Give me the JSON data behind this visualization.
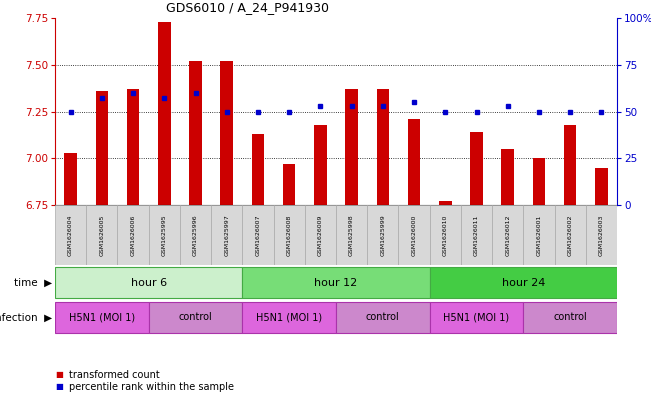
{
  "title": "GDS6010 / A_24_P941930",
  "samples": [
    "GSM1626004",
    "GSM1626005",
    "GSM1626006",
    "GSM1625995",
    "GSM1625996",
    "GSM1625997",
    "GSM1626007",
    "GSM1626008",
    "GSM1626009",
    "GSM1625998",
    "GSM1625999",
    "GSM1626000",
    "GSM1626010",
    "GSM1626011",
    "GSM1626012",
    "GSM1626001",
    "GSM1626002",
    "GSM1626003"
  ],
  "bar_values": [
    7.03,
    7.36,
    7.37,
    7.73,
    7.52,
    7.52,
    7.13,
    6.97,
    7.18,
    7.37,
    7.37,
    7.21,
    6.77,
    7.14,
    7.05,
    7.0,
    7.18,
    6.95
  ],
  "blue_values": [
    50,
    57,
    60,
    57,
    60,
    50,
    50,
    50,
    53,
    53,
    53,
    55,
    50,
    50,
    53,
    50,
    50,
    50
  ],
  "ylim_left": [
    6.75,
    7.75
  ],
  "ylim_right": [
    0,
    100
  ],
  "yticks_left": [
    6.75,
    7.0,
    7.25,
    7.5,
    7.75
  ],
  "yticks_right": [
    0,
    25,
    50,
    75,
    100
  ],
  "bar_color": "#cc0000",
  "blue_color": "#0000cc",
  "grid_yticks": [
    7.0,
    7.25,
    7.5
  ],
  "time_groups": [
    {
      "label": "hour 6",
      "start": 0,
      "end": 6,
      "color": "#ccf0cc"
    },
    {
      "label": "hour 12",
      "start": 6,
      "end": 12,
      "color": "#77dd77"
    },
    {
      "label": "hour 24",
      "start": 12,
      "end": 18,
      "color": "#44cc44"
    }
  ],
  "infection_groups": [
    {
      "label": "H5N1 (MOI 1)",
      "start": 0,
      "end": 3,
      "color": "#dd66dd"
    },
    {
      "label": "control",
      "start": 3,
      "end": 6,
      "color": "#cc88cc"
    },
    {
      "label": "H5N1 (MOI 1)",
      "start": 6,
      "end": 9,
      "color": "#dd66dd"
    },
    {
      "label": "control",
      "start": 9,
      "end": 12,
      "color": "#cc88cc"
    },
    {
      "label": "H5N1 (MOI 1)",
      "start": 12,
      "end": 15,
      "color": "#dd66dd"
    },
    {
      "label": "control",
      "start": 15,
      "end": 18,
      "color": "#cc88cc"
    }
  ],
  "bar_bottom": 6.75,
  "bar_color_label": "transformed count",
  "blue_color_label": "percentile rank within the sample",
  "cell_color": "#d8d8d8",
  "cell_edge_color": "#aaaaaa"
}
